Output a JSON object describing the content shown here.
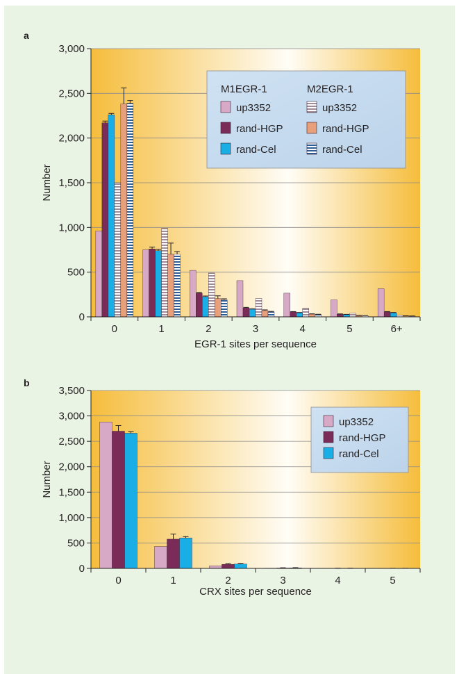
{
  "chart_data": [
    {
      "type": "bar",
      "panel_label": "a",
      "xlabel": "EGR-1 sites per sequence",
      "ylabel": "Number",
      "ylim": [
        0,
        3000
      ],
      "yticks": [
        "0",
        "500",
        "1,000",
        "1,500",
        "2,000",
        "2,500",
        "3,000"
      ],
      "categories": [
        "0",
        "1",
        "2",
        "3",
        "4",
        "5",
        "6+"
      ],
      "grid": true,
      "legend_position": "top-right",
      "legend_groups": [
        "M1EGR-1",
        "M2EGR-1"
      ],
      "series": [
        {
          "name": "up3352",
          "group": "M1EGR-1",
          "color": "#d8a9c6",
          "pattern": "solid",
          "values": [
            960,
            750,
            520,
            405,
            265,
            190,
            315
          ],
          "errors": [
            0,
            0,
            0,
            0,
            0,
            0,
            0
          ]
        },
        {
          "name": "rand-HGP",
          "group": "M1EGR-1",
          "color": "#7a2b57",
          "pattern": "solid",
          "values": [
            2170,
            760,
            265,
            100,
            55,
            30,
            55
          ],
          "errors": [
            20,
            20,
            8,
            6,
            4,
            3,
            4
          ]
        },
        {
          "name": "rand-Cel",
          "group": "M1EGR-1",
          "color": "#1aaee6",
          "pattern": "solid",
          "values": [
            2260,
            740,
            225,
            85,
            45,
            25,
            45
          ],
          "errors": [
            15,
            15,
            8,
            5,
            4,
            3,
            4
          ]
        },
        {
          "name": "up3352",
          "group": "M2EGR-1",
          "color": "#9f8a98",
          "pattern": "horizontal-stripes",
          "values": [
            1500,
            990,
            490,
            205,
            95,
            40,
            20
          ],
          "errors": [
            0,
            0,
            0,
            0,
            0,
            0,
            0
          ]
        },
        {
          "name": "rand-HGP",
          "group": "M2EGR-1",
          "color": "#e8a07a",
          "pattern": "solid",
          "values": [
            2380,
            700,
            205,
            70,
            30,
            15,
            10
          ],
          "errors": [
            180,
            125,
            30,
            8,
            4,
            3,
            2
          ]
        },
        {
          "name": "rand-Cel",
          "group": "M2EGR-1",
          "color": "#2e5d96",
          "pattern": "horizontal-stripes",
          "values": [
            2390,
            700,
            190,
            55,
            25,
            12,
            8
          ],
          "errors": [
            30,
            30,
            12,
            6,
            4,
            3,
            2
          ]
        }
      ]
    },
    {
      "type": "bar",
      "panel_label": "b",
      "xlabel": "CRX sites per sequence",
      "ylabel": "Number",
      "ylim": [
        0,
        3500
      ],
      "yticks": [
        "0",
        "500",
        "1,000",
        "1,500",
        "2,000",
        "2,500",
        "3,000",
        "3,500"
      ],
      "categories": [
        "0",
        "1",
        "2",
        "3",
        "4",
        "5"
      ],
      "grid": true,
      "legend_position": "top-right",
      "series": [
        {
          "name": "up3352",
          "color": "#d8a9c6",
          "values": [
            2880,
            430,
            50,
            5,
            0,
            0
          ],
          "errors": [
            0,
            0,
            0,
            0,
            0,
            0
          ]
        },
        {
          "name": "rand-HGP",
          "color": "#7a2b57",
          "values": [
            2700,
            575,
            80,
            8,
            2,
            1
          ],
          "errors": [
            110,
            100,
            15,
            4,
            2,
            1
          ]
        },
        {
          "name": "rand-Cel",
          "color": "#1aaee6",
          "values": [
            2660,
            600,
            85,
            10,
            2,
            1
          ],
          "errors": [
            30,
            25,
            12,
            4,
            2,
            1
          ]
        }
      ]
    }
  ]
}
